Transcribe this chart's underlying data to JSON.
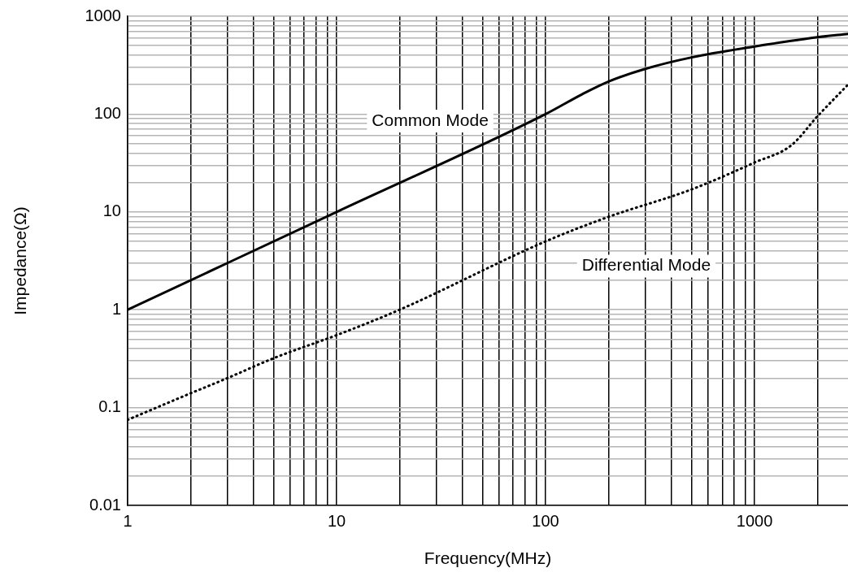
{
  "chart_data": {
    "type": "line",
    "xlabel": "Frequency(MHz)",
    "ylabel": "Impedance(Ω)",
    "log": "xy",
    "grid": true,
    "legend": false,
    "xlim": [
      1,
      2800
    ],
    "ylim": [
      0.01,
      1000
    ],
    "xticks": [
      1,
      {
        "value": 2,
        "label": null
      },
      {
        "value": 3,
        "label": null
      },
      {
        "value": 4,
        "label": null
      },
      {
        "value": 5,
        "label": null
      },
      {
        "value": 6,
        "label": null
      },
      {
        "value": 7,
        "label": null
      },
      {
        "value": 8,
        "label": null
      },
      {
        "value": 9,
        "label": null
      },
      10,
      {
        "value": 20,
        "label": null
      },
      {
        "value": 30,
        "label": null
      },
      {
        "value": 40,
        "label": null
      },
      {
        "value": 50,
        "label": null
      },
      {
        "value": 60,
        "label": null
      },
      {
        "value": 70,
        "label": null
      },
      {
        "value": 80,
        "label": null
      },
      {
        "value": 90,
        "label": null
      },
      100,
      {
        "value": 200,
        "label": null
      },
      {
        "value": 300,
        "label": null
      },
      {
        "value": 400,
        "label": null
      },
      {
        "value": 500,
        "label": null
      },
      {
        "value": 600,
        "label": null
      },
      {
        "value": 700,
        "label": null
      },
      {
        "value": 800,
        "label": null
      },
      {
        "value": 900,
        "label": null
      },
      1000,
      {
        "value": 2000,
        "label": null
      }
    ],
    "yticks": [
      0.01,
      {
        "value": 0.02,
        "label": null
      },
      {
        "value": 0.03,
        "label": null
      },
      {
        "value": 0.04,
        "label": null
      },
      {
        "value": 0.05,
        "label": null
      },
      {
        "value": 0.06,
        "label": null
      },
      {
        "value": 0.07,
        "label": null
      },
      {
        "value": 0.08,
        "label": null
      },
      {
        "value": 0.09,
        "label": null
      },
      0.1,
      {
        "value": 0.2,
        "label": null
      },
      {
        "value": 0.3,
        "label": null
      },
      {
        "value": 0.4,
        "label": null
      },
      {
        "value": 0.5,
        "label": null
      },
      {
        "value": 0.6,
        "label": null
      },
      {
        "value": 0.7,
        "label": null
      },
      {
        "value": 0.8,
        "label": null
      },
      {
        "value": 0.9,
        "label": null
      },
      1,
      {
        "value": 2,
        "label": null
      },
      {
        "value": 3,
        "label": null
      },
      {
        "value": 4,
        "label": null
      },
      {
        "value": 5,
        "label": null
      },
      {
        "value": 6,
        "label": null
      },
      {
        "value": 7,
        "label": null
      },
      {
        "value": 8,
        "label": null
      },
      {
        "value": 9,
        "label": null
      },
      10,
      {
        "value": 20,
        "label": null
      },
      {
        "value": 30,
        "label": null
      },
      {
        "value": 40,
        "label": null
      },
      {
        "value": 50,
        "label": null
      },
      {
        "value": 60,
        "label": null
      },
      {
        "value": 70,
        "label": null
      },
      {
        "value": 80,
        "label": null
      },
      {
        "value": 90,
        "label": null
      },
      100,
      {
        "value": 200,
        "label": null
      },
      {
        "value": 300,
        "label": null
      },
      {
        "value": 400,
        "label": null
      },
      {
        "value": 500,
        "label": null
      },
      {
        "value": 600,
        "label": null
      },
      {
        "value": 700,
        "label": null
      },
      {
        "value": 800,
        "label": null
      },
      {
        "value": 900,
        "label": null
      },
      1000
    ],
    "series": [
      {
        "name": "Common Mode",
        "color": "#000000",
        "line_style": "solid",
        "x": [
          1,
          10,
          100,
          150,
          200,
          300,
          500,
          1000,
          2000,
          2800
        ],
        "values": [
          1,
          10,
          100,
          160,
          215,
          290,
          380,
          490,
          610,
          660
        ]
      },
      {
        "name": "Differential Mode",
        "color": "#000000",
        "line_style": "dotted",
        "x": [
          1,
          2,
          3,
          5,
          10,
          20,
          100,
          200,
          500,
          1000,
          1500,
          2000,
          2800
        ],
        "values": [
          0.075,
          0.14,
          0.2,
          0.32,
          0.55,
          1,
          5,
          8.9,
          17,
          32,
          48,
          95,
          200
        ]
      }
    ]
  }
}
